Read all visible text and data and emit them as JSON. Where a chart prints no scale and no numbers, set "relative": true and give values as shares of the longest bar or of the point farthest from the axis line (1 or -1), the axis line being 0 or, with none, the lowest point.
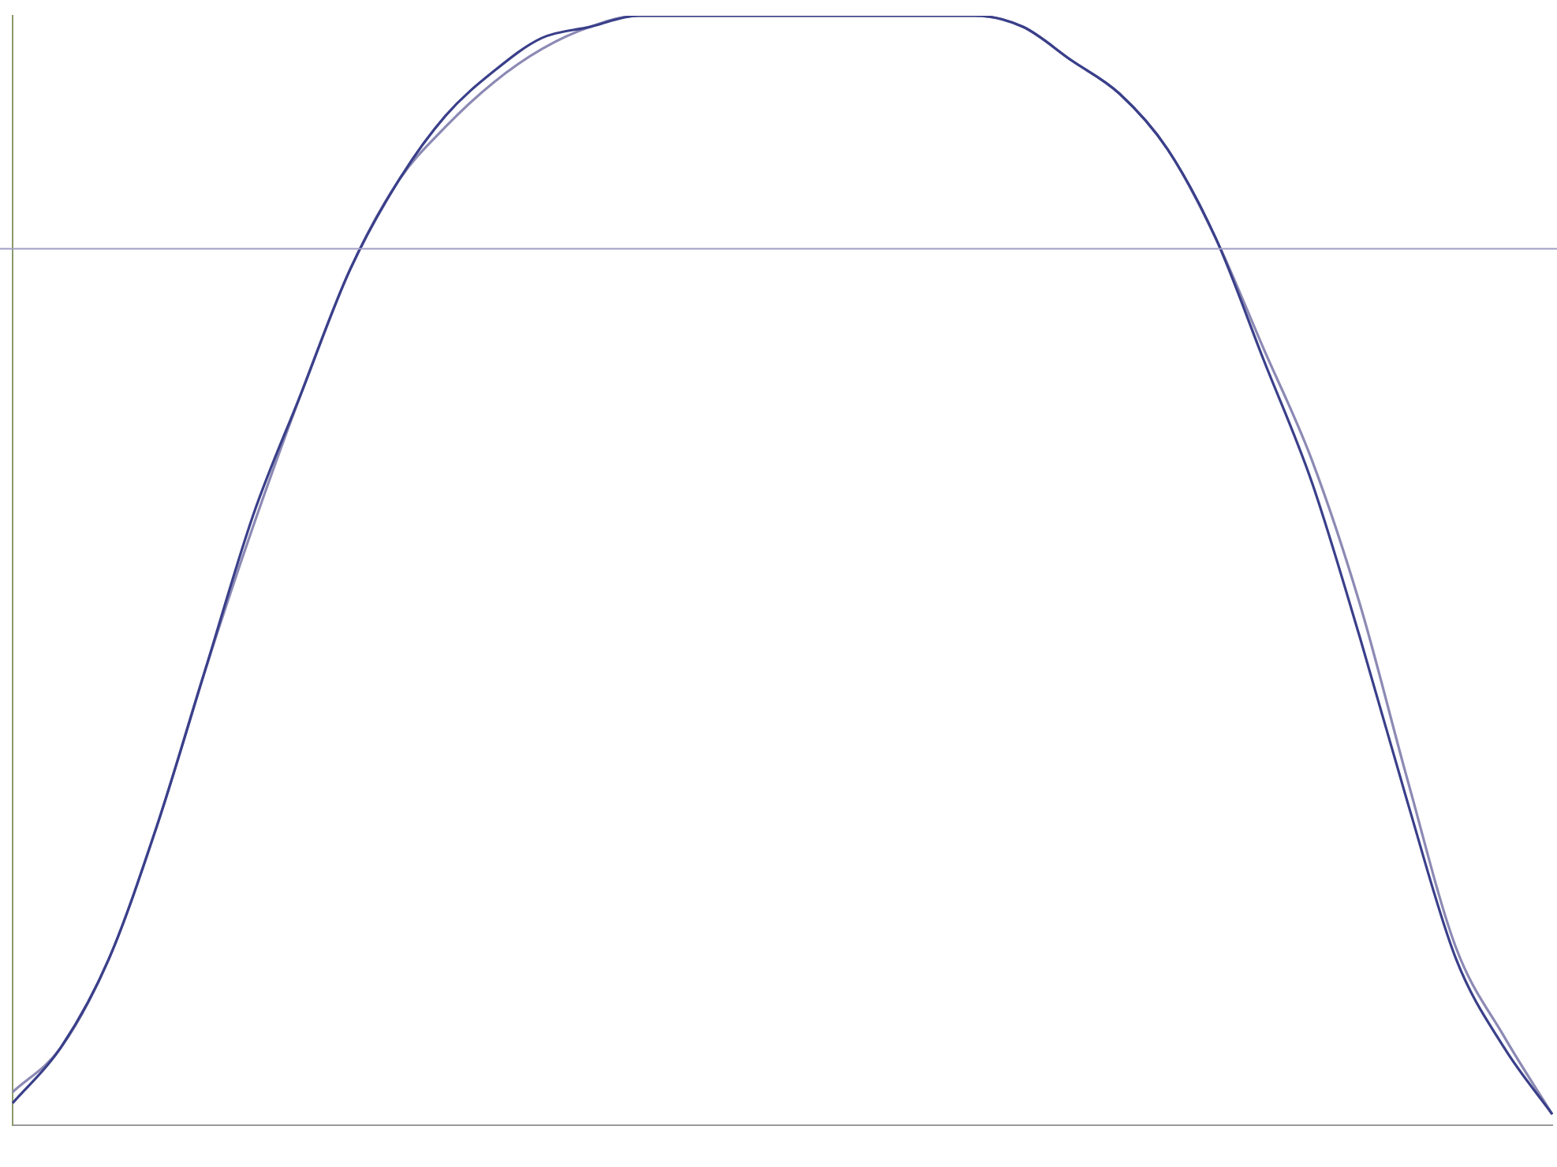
{
  "chart_data": {
    "type": "line",
    "relative": true,
    "grid": false,
    "legend": false,
    "marker": "none",
    "line_style": "solid",
    "categories": [
      null,
      null,
      null,
      null,
      null,
      null,
      null,
      null,
      null,
      null,
      null,
      null,
      null,
      null,
      null,
      null,
      null,
      null,
      null,
      null,
      null,
      null,
      null,
      null,
      null,
      null,
      null,
      null,
      null,
      null,
      null,
      null,
      null
    ],
    "series": [
      {
        "color": "#3a3f8a",
        "values": [
          0.02,
          0.07,
          0.15,
          0.27,
          0.41,
          0.55,
          0.66,
          0.77,
          0.85,
          0.91,
          0.95,
          0.98,
          0.99,
          1,
          1,
          1,
          1,
          1,
          1,
          1,
          1,
          0.99,
          0.96,
          0.93,
          0.88,
          0.8,
          0.69,
          0.58,
          0.44,
          0.29,
          0.15,
          0.07,
          0.01
        ]
      },
      {
        "color": "#8c8ab4",
        "values": [
          0.03,
          0.07,
          0.15,
          0.27,
          0.41,
          0.54,
          0.66,
          0.77,
          0.85,
          0.9,
          0.94,
          0.97,
          0.99,
          1,
          1,
          1,
          1,
          1,
          1,
          1,
          1,
          0.99,
          0.96,
          0.93,
          0.88,
          0.8,
          0.7,
          0.6,
          0.47,
          0.31,
          0.16,
          0.08,
          0.01
        ]
      }
    ],
    "ref_lines": [
      {
        "axis": "y",
        "value": 0.79,
        "color": "#a09ec4"
      }
    ]
  }
}
